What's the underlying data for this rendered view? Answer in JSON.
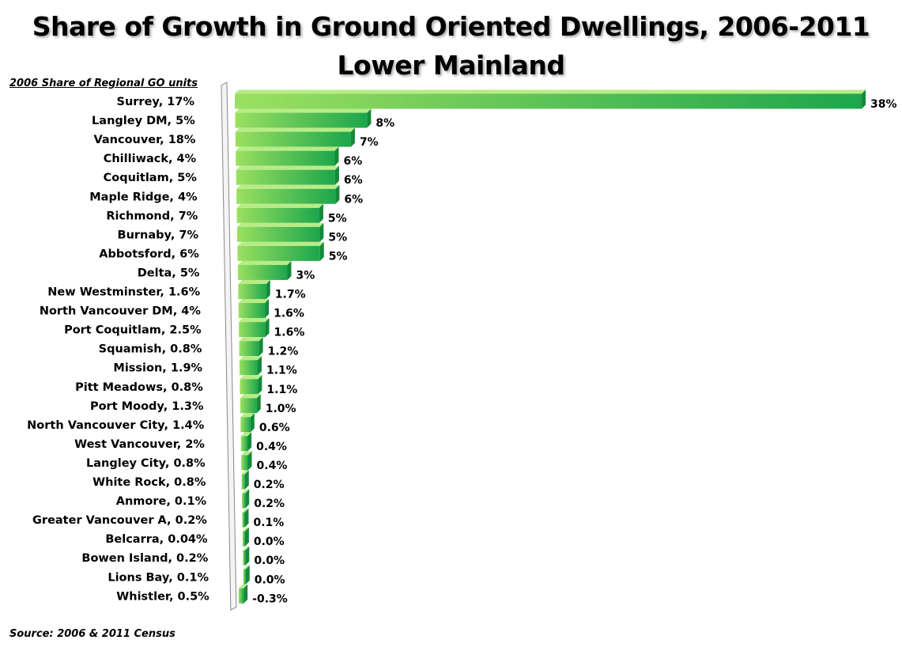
{
  "chart_data": {
    "type": "bar",
    "orientation": "horizontal",
    "title": "Share of Growth in Ground Oriented Dwellings, 2006-2011",
    "subtitle": "Lower Mainland",
    "category_header": "2006 Share of Regional  GO units",
    "source": "Source: 2006 & 2011 Census",
    "categories": [
      "Surrey, 17%",
      "Langley DM, 5%",
      "Vancouver, 18%",
      "Chilliwack, 4%",
      "Coquitlam, 5%",
      "Maple Ridge, 4%",
      "Richmond, 7%",
      "Burnaby, 7%",
      "Abbotsford, 6%",
      "Delta, 5%",
      "New Westminster, 1.6%",
      "North Vancouver DM, 4%",
      "Port Coquitlam, 2.5%",
      "Squamish, 0.8%",
      "Mission, 1.9%",
      "Pitt Meadows, 0.8%",
      "Port Moody, 1.3%",
      "North Vancouver City, 1.4%",
      "West Vancouver, 2%",
      "Langley City, 0.8%",
      "White Rock, 0.8%",
      "Anmore, 0.1%",
      "Greater Vancouver A, 0.2%",
      "Belcarra, 0.04%",
      "Bowen Island, 0.2%",
      "Lions Bay, 0.1%",
      "Whistler, 0.5%"
    ],
    "values": [
      38,
      8,
      7,
      6,
      6,
      6,
      5,
      5,
      5,
      3,
      1.7,
      1.6,
      1.6,
      1.2,
      1.1,
      1.1,
      1.0,
      0.6,
      0.4,
      0.4,
      0.2,
      0.2,
      0.1,
      0.0,
      0.0,
      0.0,
      -0.3
    ],
    "data_labels": [
      "38%",
      "8%",
      "7%",
      "6%",
      "6%",
      "6%",
      "5%",
      "5%",
      "5%",
      "3%",
      "1.7%",
      "1.6%",
      "1.6%",
      "1.2%",
      "1.1%",
      "1.1%",
      "1.0%",
      "0.6%",
      "0.4%",
      "0.4%",
      "0.2%",
      "0.2%",
      "0.1%",
      "0.0%",
      "0.0%",
      "0.0%",
      "-0.3%"
    ],
    "xlim": [
      -0.5,
      38
    ],
    "grid": false,
    "legend": "none",
    "colors": {
      "bar_light": "#9be060",
      "bar_dark": "#1ca64c",
      "bar_top": "#b8ec86",
      "bar_side": "#138a3a",
      "wall": "#ffffff",
      "wall_edge": "#888888"
    }
  }
}
